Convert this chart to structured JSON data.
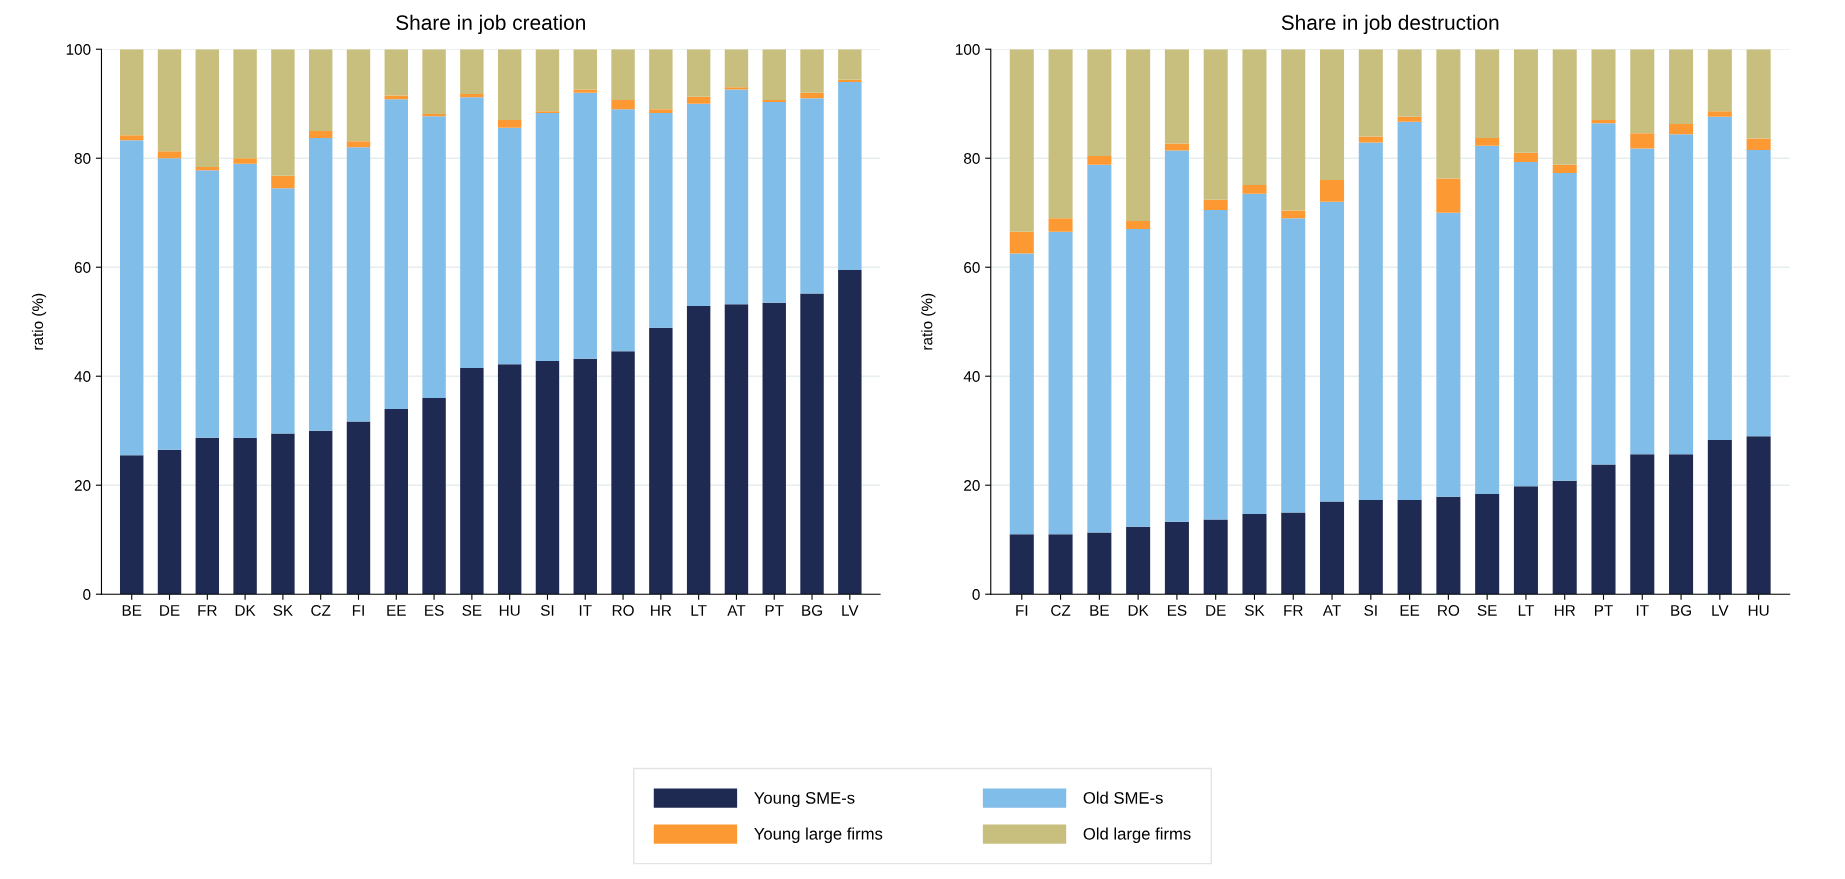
{
  "chart_data": [
    {
      "type": "bar",
      "stacked": true,
      "title": "Share in job creation",
      "ylabel": "ratio (%)",
      "ylim": [
        0,
        100
      ],
      "yticks": [
        0,
        20,
        40,
        60,
        80,
        100
      ],
      "grid": "y",
      "legend": "bottom",
      "categories": [
        "BE",
        "DE",
        "FR",
        "DK",
        "SK",
        "CZ",
        "FI",
        "EE",
        "ES",
        "SE",
        "HU",
        "SI",
        "IT",
        "RO",
        "HR",
        "LT",
        "AT",
        "PT",
        "BG",
        "LV"
      ],
      "series": [
        {
          "name": "Young SME-s",
          "color": "#1f2a52",
          "values": [
            25.5,
            26.5,
            28.7,
            28.7,
            29.5,
            30,
            31.7,
            34,
            36,
            41.5,
            42.2,
            42.8,
            43.2,
            44.6,
            48.9,
            52.9,
            53.2,
            53.5,
            55.2,
            59.5
          ]
        },
        {
          "name": "Old SME-s",
          "color": "#80bde8",
          "values": [
            57.8,
            53.5,
            49.1,
            50.3,
            45.0,
            53.7,
            50.3,
            56.8,
            51.7,
            49.7,
            43.4,
            45.5,
            48.8,
            44.4,
            39.4,
            37.1,
            39.4,
            36.8,
            35.8,
            34.5
          ]
        },
        {
          "name": "Young large firms",
          "color": "#fd9932",
          "values": [
            0.9,
            1.3,
            0.6,
            1.0,
            2.3,
            1.3,
            1.1,
            0.7,
            0.4,
            0.6,
            1.4,
            0.3,
            0.6,
            1.7,
            0.7,
            1.3,
            0.4,
            0.4,
            1.0,
            0.4
          ]
        },
        {
          "name": "Old large firms",
          "color": "#c8bf7e",
          "values": [
            15.8,
            18.7,
            21.6,
            20.0,
            23.2,
            15.0,
            16.9,
            8.5,
            11.9,
            8.2,
            13.0,
            11.4,
            7.4,
            9.3,
            11.0,
            8.7,
            7.0,
            9.3,
            8.0,
            5.6
          ]
        }
      ]
    },
    {
      "type": "bar",
      "stacked": true,
      "title": "Share in job destruction",
      "ylabel": "ratio (%)",
      "ylim": [
        0,
        100
      ],
      "yticks": [
        0,
        20,
        40,
        60,
        80,
        100
      ],
      "grid": "y",
      "categories": [
        "FI",
        "CZ",
        "BE",
        "DK",
        "ES",
        "DE",
        "SK",
        "FR",
        "AT",
        "SI",
        "EE",
        "RO",
        "SE",
        "LT",
        "HR",
        "PT",
        "IT",
        "BG",
        "LV",
        "HU"
      ],
      "series": [
        {
          "color": "#1f2a52",
          "values": [
            11,
            11,
            11.3,
            12.4,
            13.3,
            13.7,
            14.7,
            15,
            17,
            17.3,
            17.3,
            17.9,
            18.4,
            19.8,
            20.8,
            23.8,
            25.7,
            25.7,
            28.3,
            29
          ]
        },
        {
          "color": "#80bde8",
          "values": [
            51.5,
            55.5,
            67.5,
            54.6,
            68.1,
            56.8,
            58.8,
            54,
            55,
            65.6,
            69.4,
            52.1,
            63.9,
            59.5,
            56.5,
            62.6,
            56.1,
            58.7,
            59.3,
            52.5
          ]
        },
        {
          "color": "#fd9932",
          "values": [
            4.0,
            2.5,
            1.6,
            1.5,
            1.3,
            1.9,
            1.6,
            1.4,
            4.0,
            1.1,
            0.9,
            6.3,
            1.4,
            1.7,
            1.5,
            0.6,
            2.8,
            1.9,
            1.0,
            2.1
          ]
        },
        {
          "color": "#c8bf7e",
          "values": [
            33.5,
            31,
            19.6,
            31.5,
            17.3,
            27.6,
            24.9,
            29.6,
            24,
            16,
            12.4,
            23.7,
            16.3,
            19,
            21.2,
            13,
            15.4,
            13.7,
            11.4,
            16.4
          ]
        }
      ]
    }
  ]
}
